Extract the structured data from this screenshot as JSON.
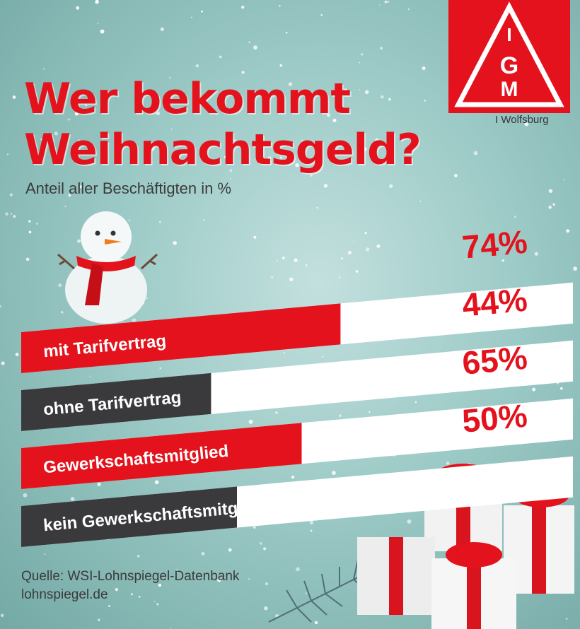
{
  "header": {
    "title_line1": "Wer bekommt",
    "title_line2": "Weihnachtsgeld?",
    "subtitle": "Anteil aller Beschäftigten in %"
  },
  "logo": {
    "letters": [
      "I",
      "G",
      "M"
    ],
    "sub": "I Wolfsburg",
    "icon": "igmetall-triangle-logo"
  },
  "chart_data": {
    "type": "bar",
    "orientation": "horizontal",
    "categories": [
      "mit Tarifvertrag",
      "ohne Tarifvertrag",
      "Gewerkschaftsmitglied",
      "kein Gewerkschaftsmitglied"
    ],
    "values": [
      74,
      44,
      65,
      50
    ],
    "value_labels": [
      "74%",
      "44%",
      "65%",
      "50%"
    ],
    "colors": [
      "#e3121c",
      "#3a3a3c",
      "#e3121c",
      "#3a3a3c"
    ],
    "title": "Wer bekommt Weihnachtsgeld?",
    "subtitle": "Anteil aller Beschäftigten in %",
    "ylabel": "",
    "xlabel": "",
    "xlim": [
      0,
      100
    ]
  },
  "footer": {
    "source_line1": "Quelle: WSI-Lohnspiegel-Datenbank",
    "source_line2": "lohnspiegel.de"
  },
  "colors": {
    "red": "#e3121c",
    "dark": "#3a3a3c",
    "background": "#9ccac6"
  }
}
